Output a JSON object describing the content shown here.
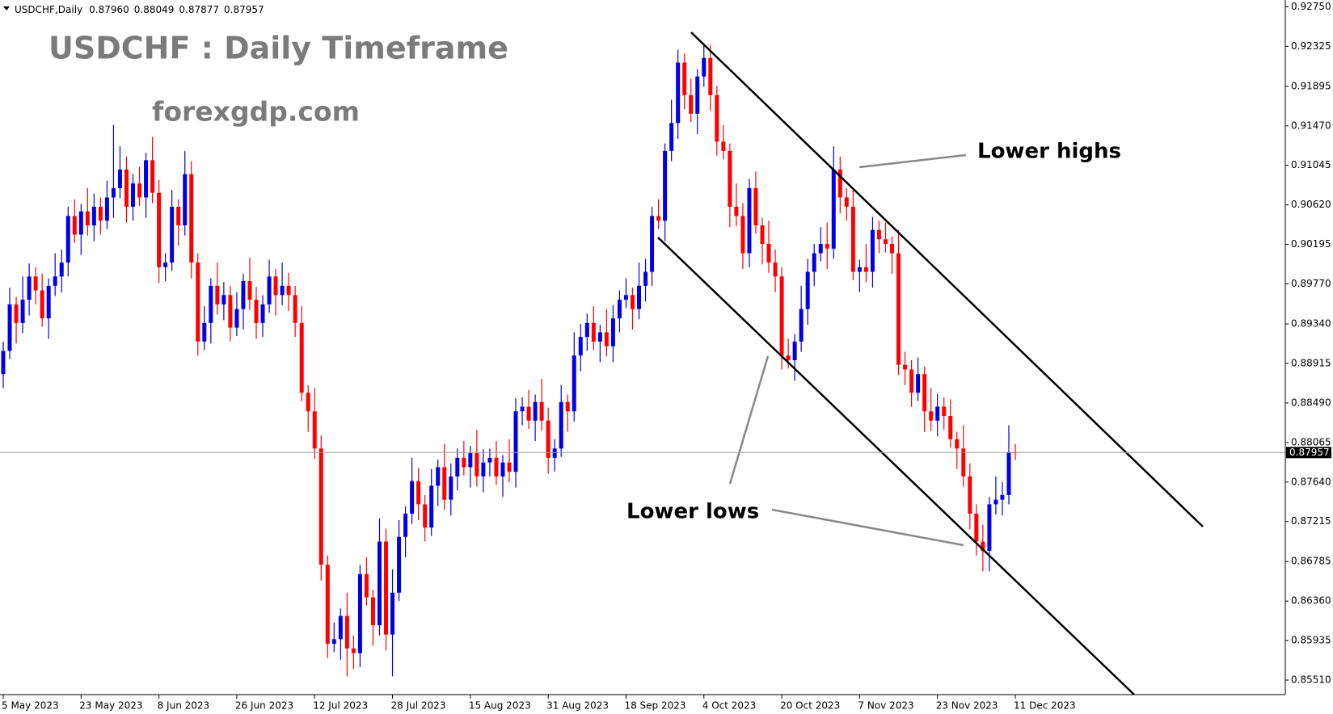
{
  "chart_data": {
    "type": "candlestick",
    "header": {
      "symbol": "USDCHF,Daily",
      "ohlc_labels": [
        "0.87960",
        "0.88049",
        "0.87877",
        "0.87957"
      ]
    },
    "title": "USDCHF : Daily Timeframe",
    "subtitle": "forexgdp.com",
    "annotations": [
      "Lower highs",
      "Lower lows"
    ],
    "up_color": "#0000e6",
    "down_color": "#ff0000",
    "ylim": [
      0.85354,
      0.92823
    ],
    "yticks": [
      {
        "value": 0.9275,
        "label": "0.92750"
      },
      0.92325,
      0.91895,
      {
        "value": 0.9147,
        "label": "0.91470"
      },
      0.91045,
      {
        "value": 0.9062,
        "label": "0.90620"
      },
      0.90195,
      {
        "value": 0.8977,
        "label": "0.89770"
      },
      {
        "value": 0.8934,
        "label": "0.89340"
      },
      0.88915,
      {
        "value": 0.8849,
        "label": "0.88490"
      },
      0.88065,
      {
        "value": 0.8764,
        "label": "0.87640"
      },
      0.87215,
      0.86785,
      {
        "value": 0.8636,
        "label": "0.86360"
      },
      0.85935,
      {
        "value": 0.8551,
        "label": "0.85510"
      }
    ],
    "xlim": [
      0,
      156
    ],
    "xticks": [
      {
        "value": 0,
        "label": "5 May 2023"
      },
      {
        "value": 12,
        "label": "23 May 2023"
      },
      {
        "value": 24,
        "label": "8 Jun 2023"
      },
      {
        "value": 36,
        "label": "26 Jun 2023"
      },
      {
        "value": 48,
        "label": "12 Jul 2023"
      },
      {
        "value": 60,
        "label": "28 Jul 2023"
      },
      {
        "value": 72,
        "label": "15 Aug 2023"
      },
      {
        "value": 84,
        "label": "31 Aug 2023"
      },
      {
        "value": 96,
        "label": "18 Sep 2023"
      },
      {
        "value": 108,
        "label": "4 Oct 2023"
      },
      {
        "value": 120,
        "label": "20 Oct 2023"
      },
      {
        "value": 132,
        "label": "7 Nov 2023"
      },
      {
        "value": 144,
        "label": "23 Nov 2023"
      },
      {
        "value": 156,
        "label": "11 Dec 2023"
      }
    ],
    "ohlc": [
      [
        0.888,
        0.8915,
        0.8865,
        0.8905
      ],
      [
        0.8905,
        0.8973,
        0.8896,
        0.8955
      ],
      [
        0.8955,
        0.8963,
        0.8913,
        0.8935
      ],
      [
        0.8935,
        0.8985,
        0.8924,
        0.896
      ],
      [
        0.896,
        0.8999,
        0.8943,
        0.8985
      ],
      [
        0.8985,
        0.8995,
        0.8955,
        0.897
      ],
      [
        0.897,
        0.8988,
        0.8931,
        0.894
      ],
      [
        0.894,
        0.8983,
        0.8918,
        0.8975
      ],
      [
        0.8975,
        0.901,
        0.8964,
        0.8985
      ],
      [
        0.8985,
        0.9014,
        0.8968,
        0.9
      ],
      [
        0.9,
        0.906,
        0.8985,
        0.905
      ],
      [
        0.905,
        0.9068,
        0.9021,
        0.903
      ],
      [
        0.903,
        0.9063,
        0.9008,
        0.9055
      ],
      [
        0.9055,
        0.908,
        0.9029,
        0.904
      ],
      [
        0.904,
        0.9074,
        0.9023,
        0.906
      ],
      [
        0.906,
        0.907,
        0.903,
        0.9045
      ],
      [
        0.9045,
        0.9088,
        0.9036,
        0.907
      ],
      [
        0.907,
        0.9148,
        0.9048,
        0.908
      ],
      [
        0.908,
        0.9125,
        0.9069,
        0.91
      ],
      [
        0.91,
        0.9114,
        0.9043,
        0.906
      ],
      [
        0.906,
        0.9095,
        0.9045,
        0.9085
      ],
      [
        0.9085,
        0.9103,
        0.9061,
        0.907
      ],
      [
        0.907,
        0.9118,
        0.9048,
        0.911
      ],
      [
        0.911,
        0.9135,
        0.9064,
        0.9075
      ],
      [
        0.9075,
        0.9089,
        0.8978,
        0.8995
      ],
      [
        0.8995,
        0.901,
        0.898,
        0.9
      ],
      [
        0.9,
        0.9078,
        0.8991,
        0.906
      ],
      [
        0.906,
        0.9068,
        0.9018,
        0.904
      ],
      [
        0.904,
        0.912,
        0.9029,
        0.9095
      ],
      [
        0.9095,
        0.9109,
        0.8983,
        0.9
      ],
      [
        0.9,
        0.901,
        0.89,
        0.8915
      ],
      [
        0.8915,
        0.8953,
        0.8906,
        0.8935
      ],
      [
        0.8935,
        0.8983,
        0.8913,
        0.8975
      ],
      [
        0.8975,
        0.9,
        0.8944,
        0.8955
      ],
      [
        0.8955,
        0.8979,
        0.8938,
        0.8965
      ],
      [
        0.8965,
        0.8975,
        0.8915,
        0.893
      ],
      [
        0.893,
        0.8968,
        0.8921,
        0.895
      ],
      [
        0.895,
        0.8988,
        0.8928,
        0.898
      ],
      [
        0.898,
        0.9005,
        0.8949,
        0.896
      ],
      [
        0.896,
        0.8974,
        0.8918,
        0.8935
      ],
      [
        0.8935,
        0.8965,
        0.892,
        0.8955
      ],
      [
        0.8955,
        0.9003,
        0.8946,
        0.8985
      ],
      [
        0.8985,
        0.8993,
        0.8943,
        0.8965
      ],
      [
        0.8965,
        0.9,
        0.8954,
        0.8975
      ],
      [
        0.8975,
        0.8989,
        0.8948,
        0.8965
      ],
      [
        0.8965,
        0.8975,
        0.892,
        0.8935
      ],
      [
        0.8935,
        0.8953,
        0.8851,
        0.886
      ],
      [
        0.886,
        0.8868,
        0.8818,
        0.884
      ],
      [
        0.884,
        0.8865,
        0.8789,
        0.88
      ],
      [
        0.88,
        0.8814,
        0.8658,
        0.8675
      ],
      [
        0.8675,
        0.8685,
        0.8575,
        0.859
      ],
      [
        0.859,
        0.8613,
        0.8581,
        0.8595
      ],
      [
        0.8595,
        0.8628,
        0.8573,
        0.862
      ],
      [
        0.862,
        0.8645,
        0.8555,
        0.8585
      ],
      [
        0.8585,
        0.8599,
        0.8563,
        0.858
      ],
      [
        0.858,
        0.8675,
        0.8565,
        0.8665
      ],
      [
        0.8665,
        0.8683,
        0.8631,
        0.864
      ],
      [
        0.864,
        0.8648,
        0.8588,
        0.861
      ],
      [
        0.861,
        0.8725,
        0.8599,
        0.87
      ],
      [
        0.87,
        0.8714,
        0.8583,
        0.86
      ],
      [
        0.86,
        0.867,
        0.8555,
        0.8645
      ],
      [
        0.8645,
        0.8723,
        0.8636,
        0.8705
      ],
      [
        0.8705,
        0.8738,
        0.8683,
        0.873
      ],
      [
        0.873,
        0.879,
        0.8719,
        0.8765
      ],
      [
        0.8765,
        0.8779,
        0.8723,
        0.874
      ],
      [
        0.874,
        0.875,
        0.87,
        0.8715
      ],
      [
        0.8715,
        0.8778,
        0.8706,
        0.876
      ],
      [
        0.876,
        0.8788,
        0.8738,
        0.878
      ],
      [
        0.878,
        0.8805,
        0.8734,
        0.8745
      ],
      [
        0.8745,
        0.8784,
        0.8728,
        0.877
      ],
      [
        0.877,
        0.88,
        0.8755,
        0.879
      ],
      [
        0.879,
        0.8808,
        0.8771,
        0.878
      ],
      [
        0.878,
        0.8803,
        0.8758,
        0.8795
      ],
      [
        0.8795,
        0.882,
        0.8759,
        0.877
      ],
      [
        0.877,
        0.8799,
        0.8753,
        0.8785
      ],
      [
        0.8785,
        0.88,
        0.877,
        0.879
      ],
      [
        0.879,
        0.8808,
        0.8761,
        0.877
      ],
      [
        0.877,
        0.8793,
        0.8748,
        0.8785
      ],
      [
        0.8785,
        0.881,
        0.8764,
        0.8775
      ],
      [
        0.8775,
        0.8854,
        0.8758,
        0.884
      ],
      [
        0.884,
        0.8855,
        0.8825,
        0.8845
      ],
      [
        0.8845,
        0.8863,
        0.8821,
        0.883
      ],
      [
        0.883,
        0.8858,
        0.8808,
        0.885
      ],
      [
        0.885,
        0.8875,
        0.8819,
        0.883
      ],
      [
        0.883,
        0.8844,
        0.8773,
        0.879
      ],
      [
        0.879,
        0.881,
        0.8775,
        0.88
      ],
      [
        0.88,
        0.8868,
        0.8791,
        0.885
      ],
      [
        0.885,
        0.8858,
        0.8818,
        0.884
      ],
      [
        0.884,
        0.8925,
        0.8829,
        0.89
      ],
      [
        0.89,
        0.8934,
        0.8883,
        0.892
      ],
      [
        0.892,
        0.8945,
        0.8905,
        0.8935
      ],
      [
        0.8935,
        0.8953,
        0.8906,
        0.8915
      ],
      [
        0.8915,
        0.8933,
        0.8893,
        0.8925
      ],
      [
        0.8925,
        0.895,
        0.8899,
        0.891
      ],
      [
        0.891,
        0.8954,
        0.8893,
        0.894
      ],
      [
        0.894,
        0.897,
        0.8925,
        0.896
      ],
      [
        0.896,
        0.8983,
        0.8951,
        0.8965
      ],
      [
        0.8965,
        0.8973,
        0.8928,
        0.895
      ],
      [
        0.895,
        0.9,
        0.8939,
        0.8975
      ],
      [
        0.8975,
        0.9004,
        0.8958,
        0.899
      ],
      [
        0.899,
        0.906,
        0.8975,
        0.905
      ],
      [
        0.905,
        0.9068,
        0.9036,
        0.9045
      ],
      [
        0.9045,
        0.9128,
        0.9023,
        0.912
      ],
      [
        0.912,
        0.9175,
        0.9109,
        0.915
      ],
      [
        0.915,
        0.9229,
        0.9133,
        0.9215
      ],
      [
        0.9215,
        0.9225,
        0.9165,
        0.918
      ],
      [
        0.918,
        0.9198,
        0.9151,
        0.916
      ],
      [
        0.916,
        0.9208,
        0.9138,
        0.92
      ],
      [
        0.92,
        0.9234,
        0.9189,
        0.922
      ],
      [
        0.922,
        0.9234,
        0.9163,
        0.918
      ],
      [
        0.918,
        0.919,
        0.9115,
        0.913
      ],
      [
        0.913,
        0.9148,
        0.9111,
        0.912
      ],
      [
        0.912,
        0.9128,
        0.9038,
        0.906
      ],
      [
        0.906,
        0.9085,
        0.9039,
        0.905
      ],
      [
        0.905,
        0.9064,
        0.8993,
        0.901
      ],
      [
        0.901,
        0.909,
        0.8995,
        0.908
      ],
      [
        0.908,
        0.9098,
        0.9031,
        0.904
      ],
      [
        0.904,
        0.9048,
        0.8998,
        0.902
      ],
      [
        0.902,
        0.9045,
        0.8989,
        0.9
      ],
      [
        0.9,
        0.9014,
        0.8968,
        0.8985
      ],
      [
        0.8985,
        0.8995,
        0.8885,
        0.89
      ],
      [
        0.89,
        0.8918,
        0.8886,
        0.8895
      ],
      [
        0.8895,
        0.8923,
        0.8873,
        0.8915
      ],
      [
        0.8915,
        0.8975,
        0.8904,
        0.895
      ],
      [
        0.895,
        0.9004,
        0.8933,
        0.899
      ],
      [
        0.899,
        0.902,
        0.8975,
        0.901
      ],
      [
        0.901,
        0.9038,
        0.9001,
        0.902
      ],
      [
        0.902,
        0.9043,
        0.8993,
        0.9015
      ],
      [
        0.9015,
        0.9125,
        0.9004,
        0.91
      ],
      [
        0.91,
        0.9114,
        0.9053,
        0.907
      ],
      [
        0.907,
        0.908,
        0.9045,
        0.906
      ],
      [
        0.906,
        0.9078,
        0.8981,
        0.899
      ],
      [
        0.899,
        0.9003,
        0.8968,
        0.8995
      ],
      [
        0.8995,
        0.902,
        0.8979,
        0.899
      ],
      [
        0.899,
        0.9049,
        0.8973,
        0.9035
      ],
      [
        0.9035,
        0.9045,
        0.901,
        0.9025
      ],
      [
        0.9025,
        0.9043,
        0.9011,
        0.902
      ],
      [
        0.902,
        0.9028,
        0.8988,
        0.901
      ],
      [
        0.901,
        0.9035,
        0.8879,
        0.889
      ],
      [
        0.889,
        0.8904,
        0.8868,
        0.8885
      ],
      [
        0.8885,
        0.8895,
        0.8845,
        0.886
      ],
      [
        0.886,
        0.8898,
        0.8851,
        0.888
      ],
      [
        0.888,
        0.8888,
        0.8818,
        0.884
      ],
      [
        0.884,
        0.8865,
        0.8819,
        0.883
      ],
      [
        0.883,
        0.8859,
        0.8813,
        0.8845
      ],
      [
        0.8845,
        0.8855,
        0.882,
        0.8835
      ],
      [
        0.8835,
        0.8853,
        0.8801,
        0.881
      ],
      [
        0.881,
        0.8818,
        0.8778,
        0.88
      ],
      [
        0.88,
        0.8825,
        0.8759,
        0.877
      ],
      [
        0.877,
        0.8784,
        0.8713,
        0.873
      ],
      [
        0.873,
        0.874,
        0.8685,
        0.87
      ],
      [
        0.87,
        0.8718,
        0.8668,
        0.869
      ],
      [
        0.869,
        0.8748,
        0.8668,
        0.874
      ],
      [
        0.874,
        0.877,
        0.8729,
        0.8745
      ],
      [
        0.8745,
        0.8764,
        0.8728,
        0.875
      ],
      [
        0.875,
        0.8825,
        0.874,
        0.8796
      ],
      [
        0.8796,
        0.88049,
        0.87877,
        0.87957
      ]
    ]
  }
}
